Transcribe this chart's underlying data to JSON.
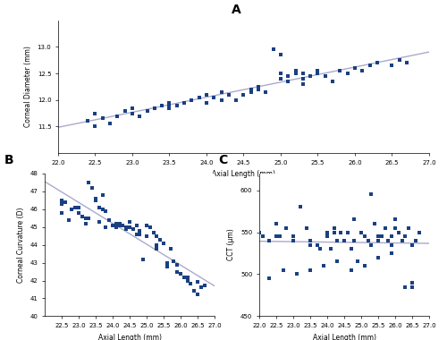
{
  "title_A": "A",
  "title_B": "B",
  "title_C": "C",
  "xlabel": "Axial Length (mm)",
  "ylabel_A": "Corneal Diameter (mm)",
  "ylabel_B": "Corneal Curvature (D)",
  "ylabel_C": "CCT (μm)",
  "marker_color": "#1a4080",
  "line_color": "#aaaacc",
  "background_color": "#FFFFFF",
  "A_x": [
    22.4,
    22.5,
    22.5,
    22.6,
    22.7,
    22.8,
    22.9,
    23.0,
    23.0,
    23.1,
    23.2,
    23.3,
    23.4,
    23.5,
    23.5,
    23.6,
    23.7,
    23.8,
    23.9,
    24.0,
    24.0,
    24.1,
    24.2,
    24.2,
    24.3,
    24.4,
    24.5,
    24.6,
    24.6,
    24.7,
    24.8,
    24.9,
    25.0,
    25.0,
    25.1,
    25.2,
    25.2,
    25.3,
    25.3,
    25.4,
    25.5,
    25.5,
    25.6,
    25.7,
    25.8,
    25.9,
    26.0,
    26.1,
    26.2,
    26.3,
    26.5,
    26.6,
    26.7,
    23.2,
    23.5,
    24.3,
    25.1,
    25.3,
    24.7,
    25.0
  ],
  "A_y": [
    11.6,
    11.5,
    11.75,
    11.65,
    11.55,
    11.7,
    11.8,
    11.75,
    11.85,
    11.7,
    11.8,
    11.85,
    11.9,
    11.85,
    11.95,
    11.9,
    11.95,
    12.0,
    12.05,
    11.95,
    12.1,
    12.05,
    12.15,
    12.0,
    12.1,
    12.0,
    12.1,
    12.15,
    12.2,
    12.25,
    12.15,
    12.95,
    12.85,
    12.5,
    12.45,
    12.55,
    12.5,
    12.4,
    12.5,
    12.45,
    12.55,
    12.5,
    12.45,
    12.35,
    12.55,
    12.5,
    12.6,
    12.55,
    12.65,
    12.7,
    12.65,
    12.75,
    12.7,
    11.8,
    11.9,
    12.1,
    12.35,
    12.3,
    12.2,
    12.4
  ],
  "A_xlim": [
    22.0,
    27.0
  ],
  "A_ylim": [
    11.0,
    13.5
  ],
  "A_xticks": [
    22.0,
    22.5,
    23.0,
    23.5,
    24.0,
    24.5,
    25.0,
    25.5,
    26.0,
    26.5,
    27.0
  ],
  "A_yticks": [
    11.5,
    12.0,
    12.5,
    13.0
  ],
  "B_x": [
    22.5,
    22.5,
    22.6,
    22.8,
    22.9,
    23.0,
    23.1,
    23.2,
    23.3,
    23.4,
    23.5,
    23.5,
    23.6,
    23.7,
    23.8,
    23.9,
    24.0,
    24.1,
    24.2,
    24.3,
    24.4,
    24.5,
    24.5,
    24.6,
    24.7,
    24.8,
    24.9,
    25.0,
    25.1,
    25.2,
    25.3,
    25.4,
    25.5,
    25.6,
    25.7,
    25.8,
    25.9,
    26.0,
    26.1,
    26.2,
    26.3,
    26.4,
    26.5,
    26.6,
    26.7,
    22.5,
    22.7,
    23.0,
    23.3,
    23.6,
    23.8,
    24.1,
    24.4,
    24.7,
    25.0,
    25.3,
    25.6,
    25.9,
    26.2,
    26.5,
    23.2,
    23.7,
    24.2,
    24.8,
    25.3
  ],
  "B_y": [
    46.5,
    46.3,
    46.4,
    46.0,
    46.1,
    45.8,
    45.6,
    45.5,
    47.5,
    47.2,
    46.6,
    46.5,
    46.1,
    46.8,
    45.9,
    45.4,
    45.1,
    45.0,
    45.2,
    45.1,
    45.0,
    45.0,
    45.3,
    44.9,
    45.1,
    44.8,
    43.2,
    45.1,
    45.0,
    44.7,
    44.5,
    44.3,
    44.1,
    43.0,
    43.8,
    43.1,
    42.9,
    42.4,
    42.2,
    42.0,
    41.8,
    41.4,
    41.2,
    41.6,
    41.7,
    45.8,
    45.4,
    46.1,
    45.5,
    45.3,
    45.0,
    45.2,
    44.9,
    44.6,
    44.5,
    43.8,
    42.8,
    42.5,
    42.2,
    41.9,
    45.2,
    46.0,
    45.1,
    44.6,
    44.0
  ],
  "B_xlim": [
    22.0,
    27.0
  ],
  "B_ylim": [
    40.0,
    48.0
  ],
  "B_xticks": [
    22.5,
    23.0,
    23.5,
    24.0,
    24.5,
    25.0,
    25.5,
    26.0,
    26.5,
    27.0
  ],
  "B_yticks": [
    40,
    41,
    42,
    43,
    44,
    45,
    46,
    47,
    48
  ],
  "C_x": [
    22.0,
    22.1,
    22.3,
    22.5,
    22.6,
    22.8,
    23.0,
    23.2,
    23.4,
    23.5,
    23.7,
    23.8,
    24.0,
    24.1,
    24.2,
    24.3,
    24.4,
    24.5,
    24.6,
    24.7,
    24.8,
    24.9,
    25.0,
    25.1,
    25.2,
    25.3,
    25.4,
    25.5,
    25.6,
    25.7,
    25.8,
    25.9,
    26.0,
    26.1,
    26.2,
    26.3,
    26.4,
    26.5,
    26.6,
    26.7,
    22.3,
    22.7,
    23.1,
    23.5,
    23.9,
    24.3,
    24.7,
    25.1,
    25.5,
    25.9,
    26.3,
    22.5,
    23.0,
    23.5,
    24.0,
    24.5,
    25.0,
    25.5,
    26.0,
    26.5,
    24.2,
    24.8,
    25.3,
    25.9,
    26.5
  ],
  "C_y": [
    550,
    545,
    540,
    560,
    545,
    555,
    545,
    580,
    555,
    540,
    535,
    530,
    550,
    530,
    550,
    540,
    550,
    540,
    550,
    530,
    540,
    515,
    550,
    545,
    540,
    535,
    560,
    540,
    545,
    555,
    540,
    535,
    565,
    550,
    540,
    545,
    555,
    535,
    540,
    550,
    495,
    505,
    500,
    505,
    510,
    515,
    505,
    510,
    520,
    525,
    485,
    545,
    540,
    535,
    545,
    540,
    550,
    545,
    555,
    485,
    555,
    565,
    595,
    545,
    490
  ],
  "C_xlim": [
    22.0,
    27.0
  ],
  "C_ylim": [
    450,
    620
  ],
  "C_xticks": [
    22.0,
    22.5,
    23.0,
    23.5,
    24.0,
    24.5,
    25.0,
    25.5,
    26.0,
    26.5,
    27.0
  ],
  "C_yticks": [
    450,
    500,
    550,
    600
  ]
}
